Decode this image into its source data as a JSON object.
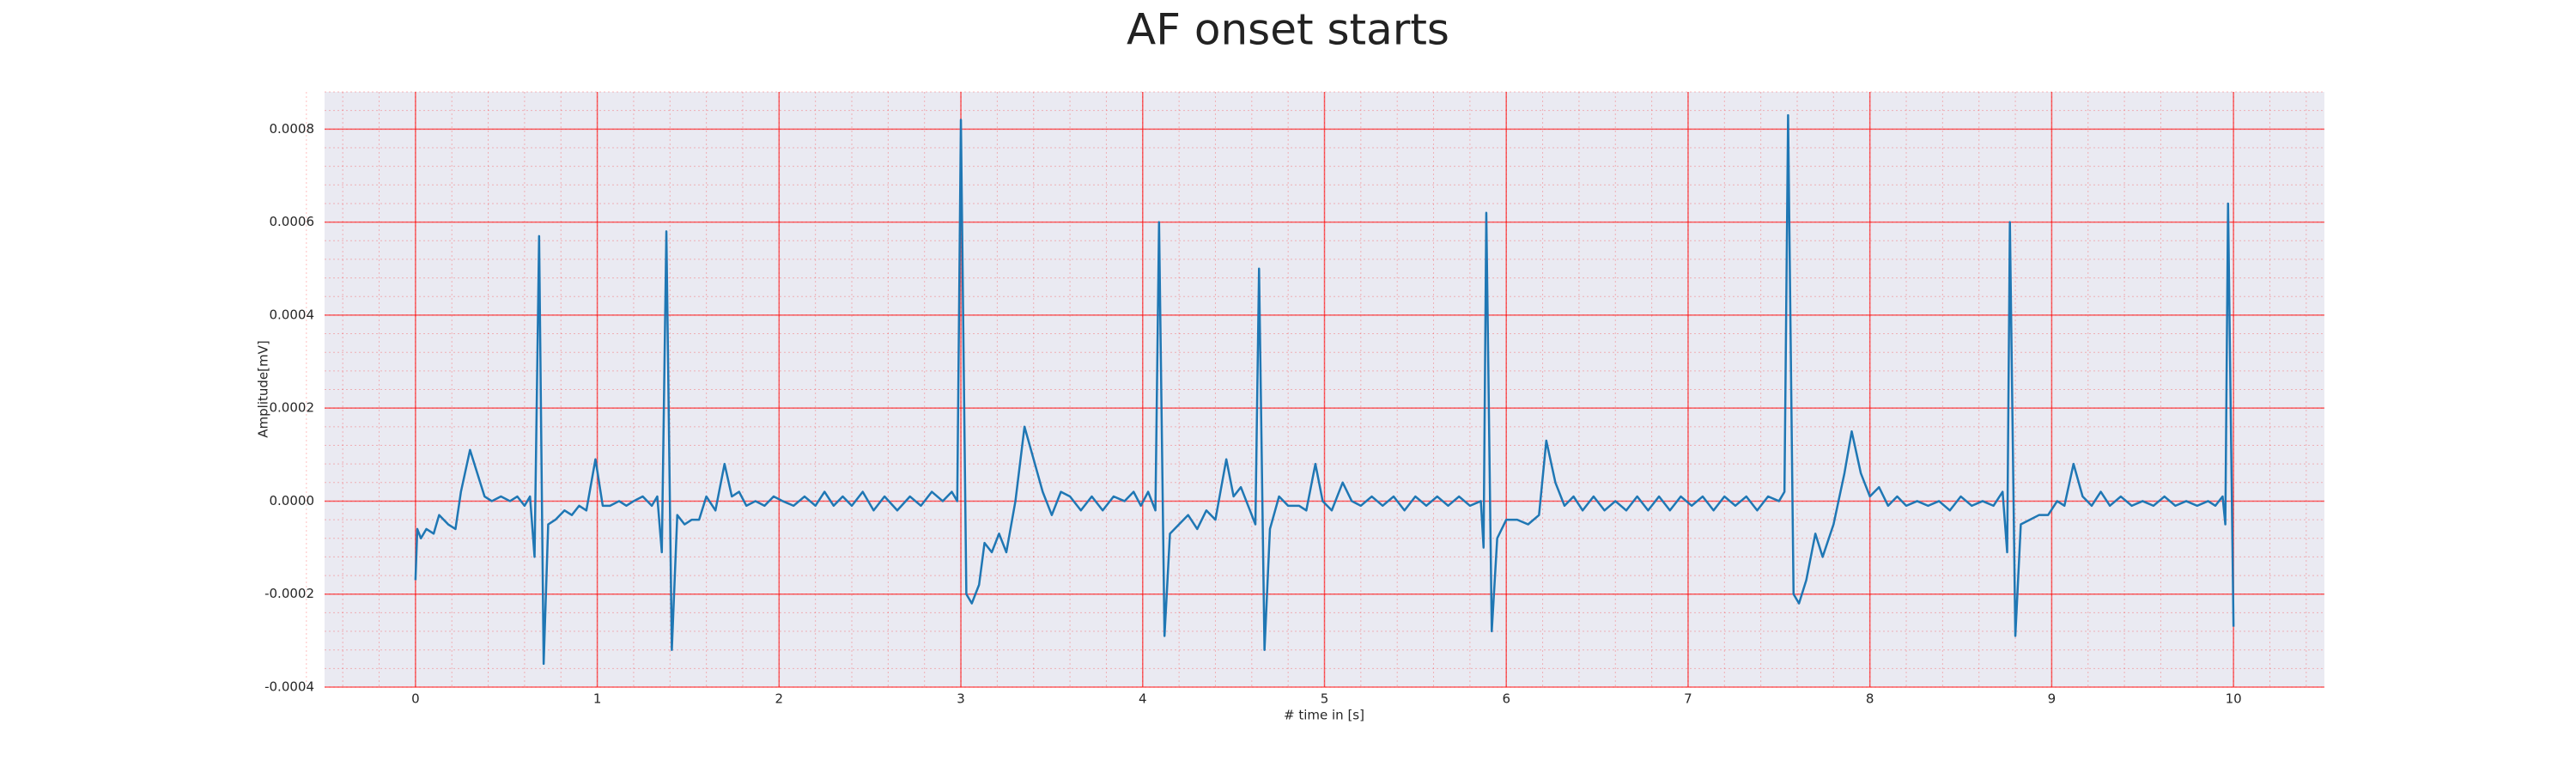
{
  "chart_data": {
    "type": "line",
    "title": "AF onset starts",
    "x_label": "# time in [s]",
    "y_label": "Amplitude[mV]",
    "xlim": [
      -0.5,
      10.5
    ],
    "xticks": [
      0,
      1,
      2,
      3,
      4,
      5,
      6,
      7,
      8,
      9,
      10
    ],
    "ylim": [
      -0.0004,
      0.00088
    ],
    "yticks": [
      -0.0004,
      -0.0002,
      {
        "value": 0,
        "label": "0.0000"
      },
      0.0002,
      0.0004,
      0.0006,
      0.0008
    ],
    "grid": true,
    "minor_grid": true,
    "grid_color": "#ff0000",
    "background": "#eaeaf2",
    "x": [
      0,
      0.01,
      0.03,
      0.06,
      0.1,
      0.13,
      0.18,
      0.22,
      0.25,
      0.3,
      0.34,
      0.38,
      0.42,
      0.47,
      0.52,
      0.56,
      0.6,
      0.63,
      0.655,
      0.68,
      0.705,
      0.73,
      0.77,
      0.82,
      0.86,
      0.9,
      0.94,
      0.99,
      1.03,
      1.07,
      1.12,
      1.16,
      1.2,
      1.25,
      1.3,
      1.33,
      1.355,
      1.38,
      1.41,
      1.44,
      1.48,
      1.52,
      1.56,
      1.6,
      1.65,
      1.7,
      1.74,
      1.78,
      1.82,
      1.87,
      1.92,
      1.97,
      2.02,
      2.08,
      2.14,
      2.2,
      2.25,
      2.3,
      2.35,
      2.4,
      2.46,
      2.52,
      2.58,
      2.65,
      2.72,
      2.78,
      2.84,
      2.9,
      2.95,
      2.98,
      3.0,
      3.03,
      3.06,
      3.1,
      3.13,
      3.17,
      3.21,
      3.25,
      3.3,
      3.35,
      3.4,
      3.45,
      3.5,
      3.55,
      3.6,
      3.66,
      3.72,
      3.78,
      3.84,
      3.9,
      3.95,
      3.99,
      4.03,
      4.07,
      4.09,
      4.12,
      4.15,
      4.2,
      4.25,
      4.3,
      4.35,
      4.4,
      4.46,
      4.5,
      4.54,
      4.58,
      4.62,
      4.64,
      4.67,
      4.7,
      4.75,
      4.8,
      4.86,
      4.9,
      4.95,
      4.99,
      5.04,
      5.1,
      5.15,
      5.2,
      5.26,
      5.32,
      5.38,
      5.44,
      5.5,
      5.56,
      5.62,
      5.68,
      5.74,
      5.8,
      5.86,
      5.875,
      5.89,
      5.92,
      5.95,
      6.0,
      6.06,
      6.12,
      6.18,
      6.22,
      6.27,
      6.32,
      6.37,
      6.42,
      6.48,
      6.54,
      6.6,
      6.66,
      6.72,
      6.78,
      6.84,
      6.9,
      6.96,
      7.02,
      7.08,
      7.14,
      7.2,
      7.26,
      7.32,
      7.38,
      7.44,
      7.5,
      7.53,
      7.55,
      7.58,
      7.61,
      7.65,
      7.7,
      7.74,
      7.8,
      7.86,
      7.9,
      7.95,
      8.0,
      8.05,
      8.1,
      8.15,
      8.2,
      8.26,
      8.32,
      8.38,
      8.44,
      8.5,
      8.56,
      8.62,
      8.68,
      8.73,
      8.755,
      8.77,
      8.8,
      8.83,
      8.88,
      8.93,
      8.98,
      9.03,
      9.07,
      9.12,
      9.17,
      9.22,
      9.27,
      9.32,
      9.38,
      9.44,
      9.5,
      9.56,
      9.62,
      9.68,
      9.74,
      9.8,
      9.86,
      9.9,
      9.94,
      9.955,
      9.97,
      10.0
    ],
    "series": [
      {
        "color": "#1f77b4",
        "values": [
          -0.00017,
          -6e-05,
          -8e-05,
          -6e-05,
          -7e-05,
          -3e-05,
          -5e-05,
          -6e-05,
          2e-05,
          0.00011,
          6e-05,
          1e-05,
          0.0,
          1e-05,
          0.0,
          1e-05,
          -1e-05,
          1e-05,
          -0.00012,
          0.00057,
          -0.00035,
          -5e-05,
          -4e-05,
          -2e-05,
          -3e-05,
          -1e-05,
          -2e-05,
          9e-05,
          -1e-05,
          -1e-05,
          0.0,
          -1e-05,
          0.0,
          1e-05,
          -1e-05,
          1e-05,
          -0.00011,
          0.00058,
          -0.00032,
          -3e-05,
          -5e-05,
          -4e-05,
          -4e-05,
          1e-05,
          -2e-05,
          8e-05,
          1e-05,
          2e-05,
          -1e-05,
          0.0,
          -1e-05,
          1e-05,
          0.0,
          -1e-05,
          1e-05,
          -1e-05,
          2e-05,
          -1e-05,
          1e-05,
          -1e-05,
          2e-05,
          -2e-05,
          1e-05,
          -2e-05,
          1e-05,
          -1e-05,
          2e-05,
          0.0,
          2e-05,
          0.0,
          0.00082,
          -0.0002,
          -0.00022,
          -0.00018,
          -9e-05,
          -0.00011,
          -7e-05,
          -0.00011,
          0.0,
          0.00016,
          9e-05,
          2e-05,
          -3e-05,
          2e-05,
          1e-05,
          -2e-05,
          1e-05,
          -2e-05,
          1e-05,
          0.0,
          2e-05,
          -1e-05,
          2e-05,
          -2e-05,
          0.0006,
          -0.00029,
          -7e-05,
          -5e-05,
          -3e-05,
          -6e-05,
          -2e-05,
          -4e-05,
          9e-05,
          1e-05,
          3e-05,
          -1e-05,
          -5e-05,
          0.0005,
          -0.00032,
          -6e-05,
          1e-05,
          -1e-05,
          -1e-05,
          -2e-05,
          8e-05,
          0.0,
          -2e-05,
          4e-05,
          0.0,
          -1e-05,
          1e-05,
          -1e-05,
          1e-05,
          -2e-05,
          1e-05,
          -1e-05,
          1e-05,
          -1e-05,
          1e-05,
          -1e-05,
          0.0,
          -0.0001,
          0.00062,
          -0.00028,
          -8e-05,
          -4e-05,
          -4e-05,
          -5e-05,
          -3e-05,
          0.00013,
          4e-05,
          -1e-05,
          1e-05,
          -2e-05,
          1e-05,
          -2e-05,
          0.0,
          -2e-05,
          1e-05,
          -2e-05,
          1e-05,
          -2e-05,
          1e-05,
          -1e-05,
          1e-05,
          -2e-05,
          1e-05,
          -1e-05,
          1e-05,
          -2e-05,
          1e-05,
          0.0,
          2e-05,
          0.00083,
          -0.0002,
          -0.00022,
          -0.00017,
          -7e-05,
          -0.00012,
          -5e-05,
          6e-05,
          0.00015,
          6e-05,
          1e-05,
          3e-05,
          -1e-05,
          1e-05,
          -1e-05,
          0.0,
          -1e-05,
          0.0,
          -2e-05,
          1e-05,
          -1e-05,
          0.0,
          -1e-05,
          2e-05,
          -0.00011,
          0.0006,
          -0.00029,
          -5e-05,
          -4e-05,
          -3e-05,
          -3e-05,
          0.0,
          -1e-05,
          8e-05,
          1e-05,
          -1e-05,
          2e-05,
          -1e-05,
          1e-05,
          -1e-05,
          0.0,
          -1e-05,
          1e-05,
          -1e-05,
          0.0,
          -1e-05,
          0.0,
          -1e-05,
          1e-05,
          -5e-05,
          0.00064,
          -0.00027
        ]
      }
    ]
  }
}
